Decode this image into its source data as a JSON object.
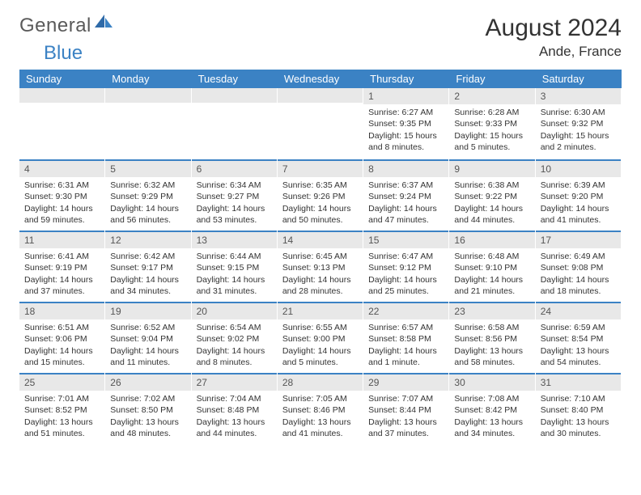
{
  "logo": {
    "main": "General",
    "accent": "Blue"
  },
  "title": "August 2024",
  "location": "Ande, France",
  "colors": {
    "header_bg": "#3b82c4",
    "header_text": "#ffffff",
    "daynum_bg": "#e8e8e8",
    "text": "#333333",
    "border": "#3b82c4"
  },
  "weekdays": [
    "Sunday",
    "Monday",
    "Tuesday",
    "Wednesday",
    "Thursday",
    "Friday",
    "Saturday"
  ],
  "weeks": [
    [
      null,
      null,
      null,
      null,
      {
        "n": "1",
        "sr": "6:27 AM",
        "ss": "9:35 PM",
        "dl": "15 hours and 8 minutes."
      },
      {
        "n": "2",
        "sr": "6:28 AM",
        "ss": "9:33 PM",
        "dl": "15 hours and 5 minutes."
      },
      {
        "n": "3",
        "sr": "6:30 AM",
        "ss": "9:32 PM",
        "dl": "15 hours and 2 minutes."
      }
    ],
    [
      {
        "n": "4",
        "sr": "6:31 AM",
        "ss": "9:30 PM",
        "dl": "14 hours and 59 minutes."
      },
      {
        "n": "5",
        "sr": "6:32 AM",
        "ss": "9:29 PM",
        "dl": "14 hours and 56 minutes."
      },
      {
        "n": "6",
        "sr": "6:34 AM",
        "ss": "9:27 PM",
        "dl": "14 hours and 53 minutes."
      },
      {
        "n": "7",
        "sr": "6:35 AM",
        "ss": "9:26 PM",
        "dl": "14 hours and 50 minutes."
      },
      {
        "n": "8",
        "sr": "6:37 AM",
        "ss": "9:24 PM",
        "dl": "14 hours and 47 minutes."
      },
      {
        "n": "9",
        "sr": "6:38 AM",
        "ss": "9:22 PM",
        "dl": "14 hours and 44 minutes."
      },
      {
        "n": "10",
        "sr": "6:39 AM",
        "ss": "9:20 PM",
        "dl": "14 hours and 41 minutes."
      }
    ],
    [
      {
        "n": "11",
        "sr": "6:41 AM",
        "ss": "9:19 PM",
        "dl": "14 hours and 37 minutes."
      },
      {
        "n": "12",
        "sr": "6:42 AM",
        "ss": "9:17 PM",
        "dl": "14 hours and 34 minutes."
      },
      {
        "n": "13",
        "sr": "6:44 AM",
        "ss": "9:15 PM",
        "dl": "14 hours and 31 minutes."
      },
      {
        "n": "14",
        "sr": "6:45 AM",
        "ss": "9:13 PM",
        "dl": "14 hours and 28 minutes."
      },
      {
        "n": "15",
        "sr": "6:47 AM",
        "ss": "9:12 PM",
        "dl": "14 hours and 25 minutes."
      },
      {
        "n": "16",
        "sr": "6:48 AM",
        "ss": "9:10 PM",
        "dl": "14 hours and 21 minutes."
      },
      {
        "n": "17",
        "sr": "6:49 AM",
        "ss": "9:08 PM",
        "dl": "14 hours and 18 minutes."
      }
    ],
    [
      {
        "n": "18",
        "sr": "6:51 AM",
        "ss": "9:06 PM",
        "dl": "14 hours and 15 minutes."
      },
      {
        "n": "19",
        "sr": "6:52 AM",
        "ss": "9:04 PM",
        "dl": "14 hours and 11 minutes."
      },
      {
        "n": "20",
        "sr": "6:54 AM",
        "ss": "9:02 PM",
        "dl": "14 hours and 8 minutes."
      },
      {
        "n": "21",
        "sr": "6:55 AM",
        "ss": "9:00 PM",
        "dl": "14 hours and 5 minutes."
      },
      {
        "n": "22",
        "sr": "6:57 AM",
        "ss": "8:58 PM",
        "dl": "14 hours and 1 minute."
      },
      {
        "n": "23",
        "sr": "6:58 AM",
        "ss": "8:56 PM",
        "dl": "13 hours and 58 minutes."
      },
      {
        "n": "24",
        "sr": "6:59 AM",
        "ss": "8:54 PM",
        "dl": "13 hours and 54 minutes."
      }
    ],
    [
      {
        "n": "25",
        "sr": "7:01 AM",
        "ss": "8:52 PM",
        "dl": "13 hours and 51 minutes."
      },
      {
        "n": "26",
        "sr": "7:02 AM",
        "ss": "8:50 PM",
        "dl": "13 hours and 48 minutes."
      },
      {
        "n": "27",
        "sr": "7:04 AM",
        "ss": "8:48 PM",
        "dl": "13 hours and 44 minutes."
      },
      {
        "n": "28",
        "sr": "7:05 AM",
        "ss": "8:46 PM",
        "dl": "13 hours and 41 minutes."
      },
      {
        "n": "29",
        "sr": "7:07 AM",
        "ss": "8:44 PM",
        "dl": "13 hours and 37 minutes."
      },
      {
        "n": "30",
        "sr": "7:08 AM",
        "ss": "8:42 PM",
        "dl": "13 hours and 34 minutes."
      },
      {
        "n": "31",
        "sr": "7:10 AM",
        "ss": "8:40 PM",
        "dl": "13 hours and 30 minutes."
      }
    ]
  ],
  "labels": {
    "sunrise": "Sunrise:",
    "sunset": "Sunset:",
    "daylight": "Daylight:"
  }
}
